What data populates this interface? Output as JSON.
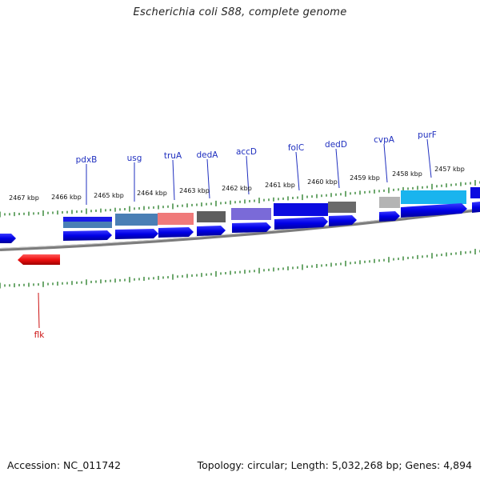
{
  "title": "Escherichia coli S88, complete genome",
  "footer": {
    "accession": "Accession: NC_011742",
    "summary": "Topology: circular; Length: 5,032,268 bp; Genes: 4,894"
  },
  "scale_labels": [
    "2467 kbp",
    "2466 kbp",
    "2465 kbp",
    "2464 kbp",
    "2463 kbp",
    "2462 kbp",
    "2461 kbp",
    "2460 kbp",
    "2459 kbp",
    "2458 kbp",
    "2457 kbp"
  ],
  "gene_labels": [
    {
      "name": "pdxB",
      "color": "#1f2fbf"
    },
    {
      "name": "usg",
      "color": "#1f2fbf"
    },
    {
      "name": "truA",
      "color": "#1f2fbf"
    },
    {
      "name": "dedA",
      "color": "#1f2fbf"
    },
    {
      "name": "accD",
      "color": "#1f2fbf"
    },
    {
      "name": "folC",
      "color": "#1f2fbf"
    },
    {
      "name": "dedD",
      "color": "#1f2fbf"
    },
    {
      "name": "cvpA",
      "color": "#1f2fbf"
    },
    {
      "name": "purF",
      "color": "#1f2fbf"
    },
    {
      "name": "flk",
      "color": "#cc1111"
    }
  ],
  "colors": {
    "cds": "#0a0ae0",
    "backbone": "#8a8a8a",
    "tick": "#1f7a1f",
    "reverse_gene": "#ee1111",
    "cog_steelblue": "#4a7fb5",
    "cog_salmon": "#f07a7a",
    "cog_gray": "#6a6a6a",
    "cog_purple": "#7a6ad8",
    "cog_lightgray": "#b4b4b4",
    "cog_cyan": "#19b4ee"
  }
}
